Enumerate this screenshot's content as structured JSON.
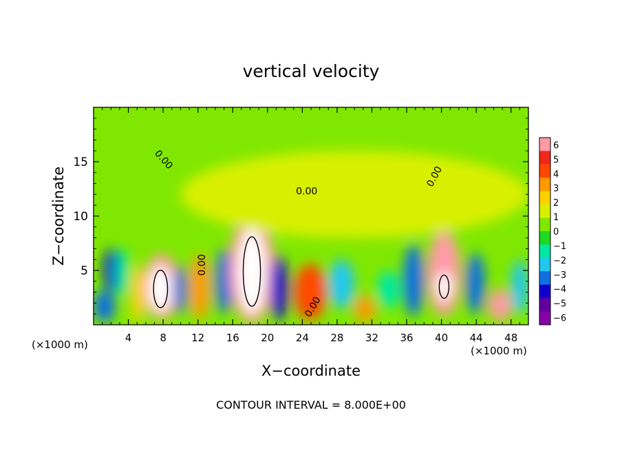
{
  "chart_data": {
    "type": "heatmap",
    "title": "vertical velocity",
    "xlabel": "X−coordinate",
    "ylabel": "Z−coordinate",
    "x_unit": "(×1000 m)",
    "y_unit": "(×1000 m)",
    "xlim": [
      0,
      50
    ],
    "ylim": [
      0,
      20
    ],
    "x_ticks": [
      4,
      8,
      12,
      16,
      20,
      24,
      28,
      32,
      36,
      40,
      44,
      48
    ],
    "y_ticks": [
      5,
      10,
      15
    ],
    "footer": "CONTOUR INTERVAL = 8.000E+00",
    "contour_labels": [
      {
        "text": "0.00",
        "x": 7.8,
        "y": 15.0,
        "angle": -48
      },
      {
        "text": "0.00",
        "x": 24.5,
        "y": 12.0,
        "angle": 0
      },
      {
        "text": "0.00",
        "x": 39.5,
        "y": 13.5,
        "angle": 62
      },
      {
        "text": "0.00",
        "x": 12.8,
        "y": 5.5,
        "angle": 90
      },
      {
        "text": "0.00",
        "x": 25.5,
        "y": 1.5,
        "angle": 60
      }
    ],
    "colorbar": {
      "levels": [
        6,
        5,
        4,
        3,
        2,
        1,
        0,
        -1,
        -2,
        -3,
        -4,
        -5,
        -6
      ],
      "colors": [
        "#ff9aa8",
        "#f02818",
        "#ff4800",
        "#ff9a00",
        "#ffd000",
        "#d8f000",
        "#80e800",
        "#20d820",
        "#00e8a0",
        "#20c8f0",
        "#1070e0",
        "#1000d0",
        "#6000a0",
        "#8800a8"
      ]
    },
    "cells": [
      {
        "x": 0.0,
        "y": 0.2,
        "w": 2.5,
        "h": 3.0,
        "v": -4.6
      },
      {
        "x": 1.2,
        "y": 3.0,
        "w": 1.8,
        "h": 4.0,
        "v": -5.2
      },
      {
        "x": 2.6,
        "y": 2.5,
        "w": 1.5,
        "h": 4.5,
        "v": -3.0
      },
      {
        "x": 4.3,
        "y": 0.1,
        "w": 1.6,
        "h": 5.5,
        "v": 1.5
      },
      {
        "x": 5.8,
        "y": 0.5,
        "w": 4.0,
        "h": 6.0,
        "v": 5.0
      },
      {
        "x": 6.4,
        "y": 1.2,
        "w": 2.6,
        "h": 4.2,
        "v": 8.2
      },
      {
        "x": 9.2,
        "y": 1.0,
        "w": 1.5,
        "h": 4.5,
        "v": -4.8
      },
      {
        "x": 11.0,
        "y": 0.5,
        "w": 2.4,
        "h": 6.0,
        "v": 2.5
      },
      {
        "x": 14.0,
        "y": 1.0,
        "w": 2.0,
        "h": 6.0,
        "v": -5.0
      },
      {
        "x": 15.6,
        "y": 0.2,
        "w": 5.2,
        "h": 9.8,
        "v": 5.2
      },
      {
        "x": 16.6,
        "y": 1.0,
        "w": 3.2,
        "h": 7.8,
        "v": 8.8
      },
      {
        "x": 20.3,
        "y": 0.4,
        "w": 2.0,
        "h": 6.0,
        "v": -5.2
      },
      {
        "x": 23.0,
        "y": 0.4,
        "w": 3.8,
        "h": 5.2,
        "v": 3.2
      },
      {
        "x": 27.0,
        "y": 1.5,
        "w": 3.0,
        "h": 4.5,
        "v": -3.4
      },
      {
        "x": 30.0,
        "y": 0.2,
        "w": 2.4,
        "h": 2.5,
        "v": 2.0
      },
      {
        "x": 32.6,
        "y": 1.5,
        "w": 2.6,
        "h": 3.5,
        "v": -3.0
      },
      {
        "x": 35.6,
        "y": 0.8,
        "w": 2.4,
        "h": 6.6,
        "v": -4.8
      },
      {
        "x": 38.4,
        "y": 0.8,
        "w": 3.8,
        "h": 7.8,
        "v": 5.4
      },
      {
        "x": 39.4,
        "y": 2.2,
        "w": 1.8,
        "h": 2.6,
        "v": 8.0
      },
      {
        "x": 42.8,
        "y": 1.0,
        "w": 2.2,
        "h": 5.6,
        "v": -4.8
      },
      {
        "x": 45.4,
        "y": 0.3,
        "w": 2.6,
        "h": 3.0,
        "v": 5.0
      },
      {
        "x": 48.0,
        "y": 1.0,
        "w": 2.0,
        "h": 5.0,
        "v": -3.4
      },
      {
        "x": 10.0,
        "y": 8.0,
        "w": 40.0,
        "h": 8.0,
        "v": 0.2
      }
    ]
  }
}
